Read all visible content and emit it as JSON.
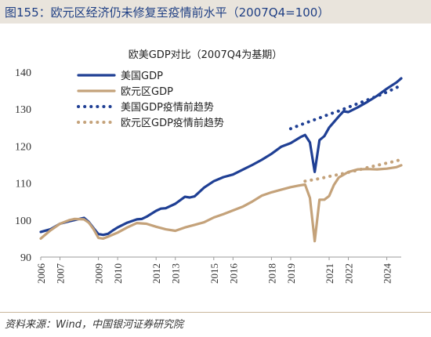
{
  "figure": {
    "title": "图155：欧元区经济仍未修复至疫情前水平（2007Q4=100）",
    "source": "资料来源：Wind，中国银河证券研究院"
  },
  "colors": {
    "us": "#1f3f94",
    "eu": "#c4a27a",
    "title_bar": "#e9e4dc",
    "title_text": "#1f3f84"
  },
  "chart_data": {
    "type": "line",
    "title": "欧美GDP对比（2007Q4为基期）",
    "xlabel": "",
    "ylabel": "",
    "xlim": [
      2006.0,
      2024.75
    ],
    "ylim": [
      90,
      140
    ],
    "yticks": [
      90,
      100,
      110,
      120,
      130,
      140
    ],
    "xticks": [
      "2006",
      "2007",
      "2009",
      "2010",
      "2012",
      "2013",
      "2015",
      "2016",
      "2018",
      "2019",
      "2021",
      "2022",
      "2024"
    ],
    "legend": {
      "placement": "top-left"
    },
    "grid": false,
    "series": [
      {
        "name": "美国GDP",
        "style": "solid",
        "color": "#1f3f94",
        "x": [
          2006.0,
          2006.5,
          2007.0,
          2007.5,
          2007.75,
          2008.25,
          2008.5,
          2008.75,
          2009.0,
          2009.25,
          2009.5,
          2009.75,
          2010.0,
          2010.5,
          2011.0,
          2011.25,
          2011.5,
          2012.0,
          2012.25,
          2012.5,
          2013.0,
          2013.5,
          2013.75,
          2014.0,
          2014.5,
          2015.0,
          2015.5,
          2016.0,
          2016.5,
          2017.0,
          2017.5,
          2018.0,
          2018.5,
          2019.0,
          2019.5,
          2019.75,
          2020.0,
          2020.25,
          2020.5,
          2020.75,
          2021.0,
          2021.5,
          2021.75,
          2022.0,
          2022.5,
          2023.0,
          2023.5,
          2024.0,
          2024.5,
          2024.75
        ],
        "y": [
          96.8,
          97.5,
          99.0,
          99.7,
          100.0,
          100.6,
          99.5,
          97.8,
          96.2,
          96.0,
          96.3,
          97.2,
          98.0,
          99.3,
          100.2,
          100.3,
          100.9,
          102.5,
          103.1,
          103.2,
          104.4,
          106.3,
          106.1,
          106.4,
          108.8,
          110.5,
          111.6,
          112.3,
          113.6,
          114.9,
          116.3,
          117.9,
          119.8,
          120.8,
          122.4,
          123.0,
          121.0,
          113.0,
          121.6,
          122.7,
          125.0,
          128.0,
          129.4,
          129.2,
          130.5,
          132.0,
          133.6,
          135.5,
          137.2,
          138.3
        ]
      },
      {
        "name": "欧元区GDP",
        "style": "solid",
        "color": "#c4a27a",
        "x": [
          2006.0,
          2006.5,
          2007.0,
          2007.5,
          2007.75,
          2008.25,
          2008.5,
          2008.75,
          2009.0,
          2009.25,
          2009.5,
          2010.0,
          2010.5,
          2011.0,
          2011.5,
          2012.0,
          2012.5,
          2013.0,
          2013.5,
          2014.0,
          2014.5,
          2015.0,
          2015.5,
          2016.0,
          2016.5,
          2017.0,
          2017.5,
          2018.0,
          2018.5,
          2019.0,
          2019.5,
          2019.75,
          2020.0,
          2020.25,
          2020.5,
          2020.75,
          2021.0,
          2021.25,
          2021.5,
          2022.0,
          2022.5,
          2023.0,
          2023.5,
          2024.0,
          2024.5,
          2024.75
        ],
        "y": [
          95.0,
          97.2,
          99.0,
          100.0,
          100.3,
          100.2,
          99.3,
          97.5,
          95.2,
          95.0,
          95.5,
          96.6,
          98.0,
          99.2,
          99.0,
          98.2,
          97.5,
          97.1,
          98.0,
          98.7,
          99.4,
          100.7,
          101.6,
          102.6,
          103.6,
          105.0,
          106.6,
          107.5,
          108.2,
          108.9,
          109.4,
          109.6,
          106.0,
          94.3,
          105.5,
          105.5,
          106.5,
          109.5,
          111.5,
          113.0,
          113.7,
          113.8,
          113.7,
          113.9,
          114.3,
          114.8
        ]
      },
      {
        "name": "美国GDP疫情前趋势",
        "style": "dotted",
        "color": "#1f3f94",
        "x": [
          2019.0,
          2019.75,
          2020.5,
          2021.0,
          2021.5,
          2022.0,
          2022.5,
          2023.0,
          2023.5,
          2024.0,
          2024.5,
          2024.75
        ],
        "y": [
          124.7,
          126.2,
          127.6,
          128.6,
          129.5,
          130.5,
          131.5,
          132.5,
          133.5,
          134.6,
          135.8,
          136.5
        ]
      },
      {
        "name": "欧元区GDP疫情前趋势",
        "style": "dotted",
        "color": "#c4a27a",
        "x": [
          2019.75,
          2020.5,
          2021.0,
          2021.5,
          2022.0,
          2022.5,
          2023.0,
          2023.5,
          2024.0,
          2024.5,
          2024.75
        ],
        "y": [
          110.5,
          111.2,
          111.8,
          112.3,
          112.9,
          113.5,
          114.2,
          114.8,
          115.4,
          116.0,
          116.4
        ]
      }
    ]
  }
}
